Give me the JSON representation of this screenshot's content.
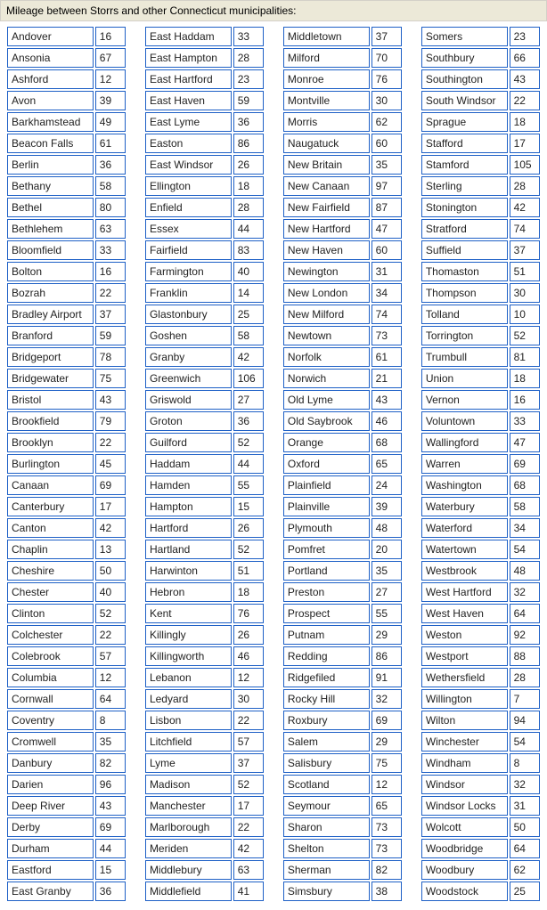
{
  "header": "Mileage between Storrs and other Connecticut municipalities:",
  "style": {
    "border_color": "#1e60c6",
    "header_bg": "#ece9d8",
    "font_size": 12,
    "spacing": 2
  },
  "rows": [
    [
      [
        "Andover",
        "16"
      ],
      [
        "East Haddam",
        "33"
      ],
      [
        "Middletown",
        "37"
      ],
      [
        "Somers",
        "23"
      ]
    ],
    [
      [
        "Ansonia",
        "67"
      ],
      [
        "East Hampton",
        "28"
      ],
      [
        "Milford",
        "70"
      ],
      [
        "Southbury",
        "66"
      ]
    ],
    [
      [
        "Ashford",
        "12"
      ],
      [
        "East Hartford",
        "23"
      ],
      [
        "Monroe",
        "76"
      ],
      [
        "Southington",
        "43"
      ]
    ],
    [
      [
        "Avon",
        "39"
      ],
      [
        "East Haven",
        "59"
      ],
      [
        "Montville",
        "30"
      ],
      [
        "South Windsor",
        "22"
      ]
    ],
    [
      [
        "Barkhamstead",
        "49"
      ],
      [
        "East Lyme",
        "36"
      ],
      [
        "Morris",
        "62"
      ],
      [
        "Sprague",
        "18"
      ]
    ],
    [
      [
        "Beacon Falls",
        "61"
      ],
      [
        "Easton",
        "86"
      ],
      [
        "Naugatuck",
        "60"
      ],
      [
        "Stafford",
        "17"
      ]
    ],
    [
      [
        "Berlin",
        "36"
      ],
      [
        "East Windsor",
        "26"
      ],
      [
        "New Britain",
        "35"
      ],
      [
        "Stamford",
        "105"
      ]
    ],
    [
      [
        "Bethany",
        "58"
      ],
      [
        "Ellington",
        "18"
      ],
      [
        "New Canaan",
        "97"
      ],
      [
        "Sterling",
        "28"
      ]
    ],
    [
      [
        "Bethel",
        "80"
      ],
      [
        "Enfield",
        "28"
      ],
      [
        "New Fairfield",
        "87"
      ],
      [
        "Stonington",
        "42"
      ]
    ],
    [
      [
        "Bethlehem",
        "63"
      ],
      [
        "Essex",
        "44"
      ],
      [
        "New Hartford",
        "47"
      ],
      [
        "Stratford",
        "74"
      ]
    ],
    [
      [
        "Bloomfield",
        "33"
      ],
      [
        "Fairfield",
        "83"
      ],
      [
        "New Haven",
        "60"
      ],
      [
        "Suffield",
        "37"
      ]
    ],
    [
      [
        "Bolton",
        "16"
      ],
      [
        "Farmington",
        "40"
      ],
      [
        "Newington",
        "31"
      ],
      [
        "Thomaston",
        "51"
      ]
    ],
    [
      [
        "Bozrah",
        "22"
      ],
      [
        "Franklin",
        "14"
      ],
      [
        "New London",
        "34"
      ],
      [
        "Thompson",
        "30"
      ]
    ],
    [
      [
        "Bradley Airport",
        "37"
      ],
      [
        "Glastonbury",
        "25"
      ],
      [
        "New Milford",
        "74"
      ],
      [
        "Tolland",
        "10"
      ]
    ],
    [
      [
        "Branford",
        "59"
      ],
      [
        "Goshen",
        "58"
      ],
      [
        "Newtown",
        "73"
      ],
      [
        "Torrington",
        "52"
      ]
    ],
    [
      [
        "Bridgeport",
        "78"
      ],
      [
        "Granby",
        "42"
      ],
      [
        "Norfolk",
        "61"
      ],
      [
        "Trumbull",
        "81"
      ]
    ],
    [
      [
        "Bridgewater",
        "75"
      ],
      [
        "Greenwich",
        "106"
      ],
      [
        "Norwich",
        "21"
      ],
      [
        "Union",
        "18"
      ]
    ],
    [
      [
        "Bristol",
        "43"
      ],
      [
        "Griswold",
        "27"
      ],
      [
        "Old Lyme",
        "43"
      ],
      [
        "Vernon",
        "16"
      ]
    ],
    [
      [
        "Brookfield",
        "79"
      ],
      [
        "Groton",
        "36"
      ],
      [
        "Old Saybrook",
        "46"
      ],
      [
        "Voluntown",
        "33"
      ]
    ],
    [
      [
        "Brooklyn",
        "22"
      ],
      [
        "Guilford",
        "52"
      ],
      [
        "Orange",
        "68"
      ],
      [
        "Wallingford",
        "47"
      ]
    ],
    [
      [
        "Burlington",
        "45"
      ],
      [
        "Haddam",
        "44"
      ],
      [
        "Oxford",
        "65"
      ],
      [
        "Warren",
        "69"
      ]
    ],
    [
      [
        "Canaan",
        "69"
      ],
      [
        "Hamden",
        "55"
      ],
      [
        "Plainfield",
        "24"
      ],
      [
        "Washington",
        "68"
      ]
    ],
    [
      [
        "Canterbury",
        "17"
      ],
      [
        "Hampton",
        "15"
      ],
      [
        "Plainville",
        "39"
      ],
      [
        "Waterbury",
        "58"
      ]
    ],
    [
      [
        "Canton",
        "42"
      ],
      [
        "Hartford",
        "26"
      ],
      [
        "Plymouth",
        "48"
      ],
      [
        "Waterford",
        "34"
      ]
    ],
    [
      [
        "Chaplin",
        "13"
      ],
      [
        "Hartland",
        "52"
      ],
      [
        "Pomfret",
        "20"
      ],
      [
        "Watertown",
        "54"
      ]
    ],
    [
      [
        "Cheshire",
        "50"
      ],
      [
        "Harwinton",
        "51"
      ],
      [
        "Portland",
        "35"
      ],
      [
        "Westbrook",
        "48"
      ]
    ],
    [
      [
        "Chester",
        "40"
      ],
      [
        "Hebron",
        "18"
      ],
      [
        "Preston",
        "27"
      ],
      [
        "West Hartford",
        "32"
      ]
    ],
    [
      [
        "Clinton",
        "52"
      ],
      [
        "Kent",
        "76"
      ],
      [
        "Prospect",
        "55"
      ],
      [
        "West Haven",
        "64"
      ]
    ],
    [
      [
        "Colchester",
        "22"
      ],
      [
        "Killingly",
        "26"
      ],
      [
        "Putnam",
        "29"
      ],
      [
        "Weston",
        "92"
      ]
    ],
    [
      [
        "Colebrook",
        "57"
      ],
      [
        "Killingworth",
        "46"
      ],
      [
        "Redding",
        "86"
      ],
      [
        "Westport",
        "88"
      ]
    ],
    [
      [
        "Columbia",
        "12"
      ],
      [
        "Lebanon",
        "12"
      ],
      [
        "Ridgefiled",
        "91"
      ],
      [
        "Wethersfield",
        "28"
      ]
    ],
    [
      [
        "Cornwall",
        "64"
      ],
      [
        "Ledyard",
        "30"
      ],
      [
        "Rocky Hill",
        "32"
      ],
      [
        "Willington",
        "7"
      ]
    ],
    [
      [
        "Coventry",
        "8"
      ],
      [
        "Lisbon",
        "22"
      ],
      [
        "Roxbury",
        "69"
      ],
      [
        "Wilton",
        "94"
      ]
    ],
    [
      [
        "Cromwell",
        "35"
      ],
      [
        "Litchfield",
        "57"
      ],
      [
        "Salem",
        "29"
      ],
      [
        "Winchester",
        "54"
      ]
    ],
    [
      [
        "Danbury",
        "82"
      ],
      [
        "Lyme",
        "37"
      ],
      [
        "Salisbury",
        "75"
      ],
      [
        "Windham",
        "8"
      ]
    ],
    [
      [
        "Darien",
        "96"
      ],
      [
        "Madison",
        "52"
      ],
      [
        "Scotland",
        "12"
      ],
      [
        "Windsor",
        "32"
      ]
    ],
    [
      [
        "Deep River",
        "43"
      ],
      [
        "Manchester",
        "17"
      ],
      [
        "Seymour",
        "65"
      ],
      [
        "Windsor Locks",
        "31"
      ]
    ],
    [
      [
        "Derby",
        "69"
      ],
      [
        "Marlborough",
        "22"
      ],
      [
        "Sharon",
        "73"
      ],
      [
        "Wolcott",
        "50"
      ]
    ],
    [
      [
        "Durham",
        "44"
      ],
      [
        "Meriden",
        "42"
      ],
      [
        "Shelton",
        "73"
      ],
      [
        "Woodbridge",
        "64"
      ]
    ],
    [
      [
        "Eastford",
        "15"
      ],
      [
        "Middlebury",
        "63"
      ],
      [
        "Sherman",
        "82"
      ],
      [
        "Woodbury",
        "62"
      ]
    ],
    [
      [
        "East Granby",
        "36"
      ],
      [
        "Middlefield",
        "41"
      ],
      [
        "Simsbury",
        "38"
      ],
      [
        "Woodstock",
        "25"
      ]
    ]
  ]
}
